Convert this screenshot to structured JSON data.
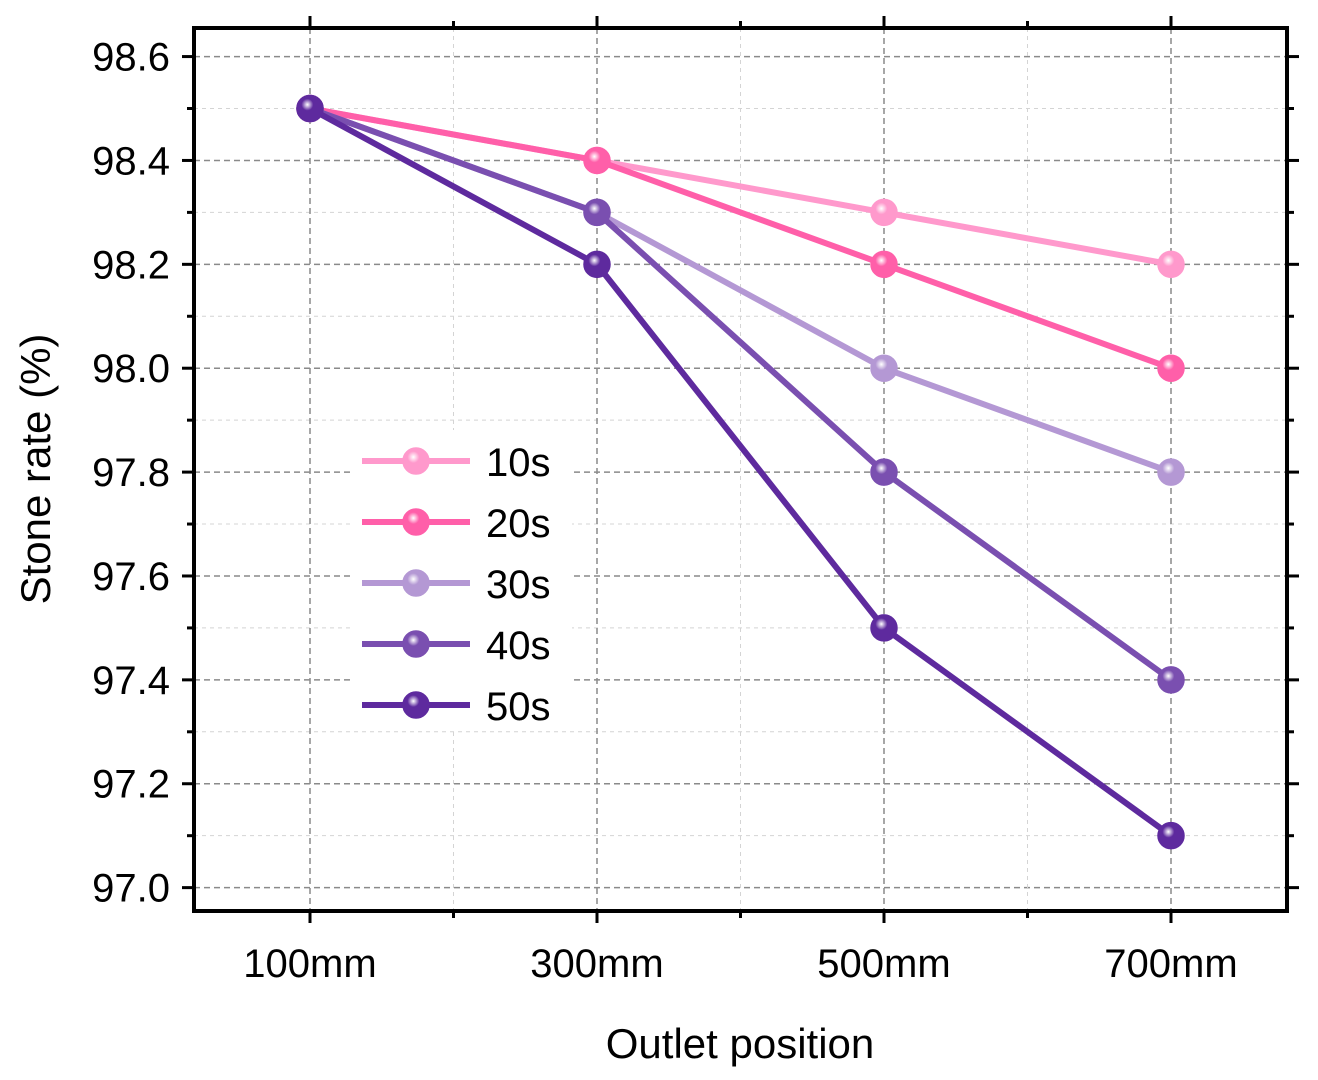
{
  "chart_data": {
    "type": "line",
    "xlabel": "Outlet position",
    "ylabel": "Stone rate (%)",
    "categories": [
      "100mm",
      "300mm",
      "500mm",
      "700mm"
    ],
    "ylim": [
      96.955,
      98.655
    ],
    "y_ticks": [
      "97.0",
      "97.2",
      "97.4",
      "97.6",
      "97.8",
      "98.0",
      "98.2",
      "98.4",
      "98.6"
    ],
    "grid": true,
    "legend_position": "center-left",
    "series": [
      {
        "name": "10s",
        "color": "#ff99cc",
        "values": [
          98.5,
          98.4,
          98.3,
          98.2
        ]
      },
      {
        "name": "20s",
        "color": "#ff5fa9",
        "values": [
          98.5,
          98.4,
          98.2,
          98.0
        ]
      },
      {
        "name": "30s",
        "color": "#b498d4",
        "values": [
          98.5,
          98.3,
          98.0,
          97.8
        ]
      },
      {
        "name": "40s",
        "color": "#7a4fb0",
        "values": [
          98.5,
          98.3,
          97.8,
          97.4
        ]
      },
      {
        "name": "50s",
        "color": "#5e2a9e",
        "values": [
          98.5,
          98.2,
          97.5,
          97.1
        ]
      }
    ]
  }
}
